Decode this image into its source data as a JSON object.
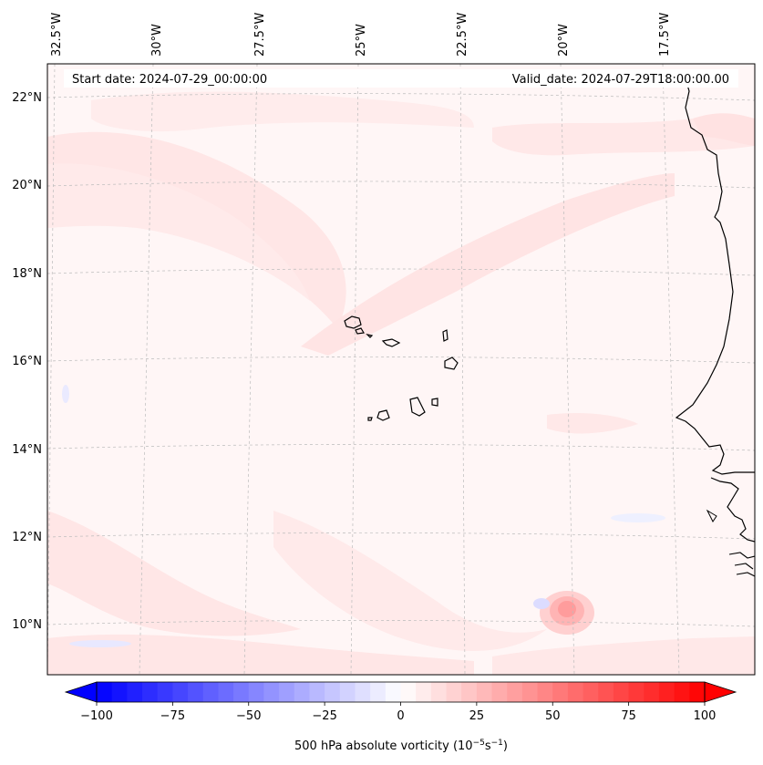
{
  "map": {
    "start_date_label": "Start date: 2024-07-29_00:00:00",
    "valid_date_label": "Valid_date: 2024-07-29T18:00:00.00",
    "lon_labels": [
      "32.5°W",
      "30°W",
      "27.5°W",
      "25°W",
      "22.5°W",
      "20°W",
      "17.5°W"
    ],
    "lat_labels": [
      "22°N",
      "20°N",
      "18°N",
      "16°N",
      "14°N",
      "12°N",
      "10°N"
    ],
    "extent": {
      "lon": [
        -33.0,
        -15.5
      ],
      "lat": [
        8.9,
        22.8
      ]
    },
    "field": "500 hPa absolute vorticity",
    "colors": {
      "positive": "#ff0000",
      "negative": "#0000ff",
      "neutral": "#ffffff",
      "coastline": "#000000"
    }
  },
  "colorbar": {
    "ticks": [
      "−100",
      "−75",
      "−50",
      "−25",
      "0",
      "25",
      "50",
      "75",
      "100"
    ],
    "range": [
      -100,
      100
    ],
    "step": 5,
    "label_main": "500 hPa absolute vorticity (10",
    "label_exp1": "−5",
    "label_mid": "s",
    "label_exp2": "−1",
    "label_end": ")"
  }
}
